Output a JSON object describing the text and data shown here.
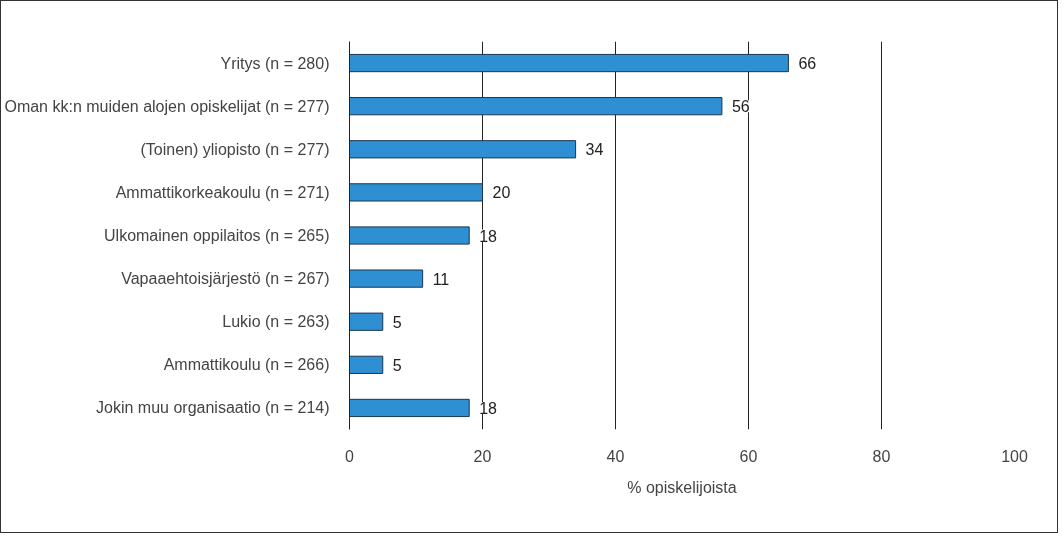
{
  "chart_data": {
    "type": "bar",
    "orientation": "horizontal",
    "xlabel": "% opiskelijoista",
    "categories": [
      "Yritys (n = 280)",
      "Oman kk:n muiden alojen opiskelijat (n = 277)",
      "(Toinen) yliopisto (n = 277)",
      "Ammattikorkeakoulu (n = 271)",
      "Ulkomainen oppilaitos (n = 265)",
      "Vapaaehtoisjärjestö (n = 267)",
      "Lukio (n = 263)",
      "Ammattikoulu (n = 266)",
      "Jokin muu organisaatio (n = 214)"
    ],
    "values": [
      66,
      56,
      34,
      20,
      18,
      11,
      5,
      5,
      18
    ],
    "color": "#2e8fd3",
    "xlim": [
      0,
      100
    ],
    "xticks": [
      0,
      20,
      40,
      60,
      80,
      100
    ],
    "grid": "x",
    "data_labels": true
  }
}
